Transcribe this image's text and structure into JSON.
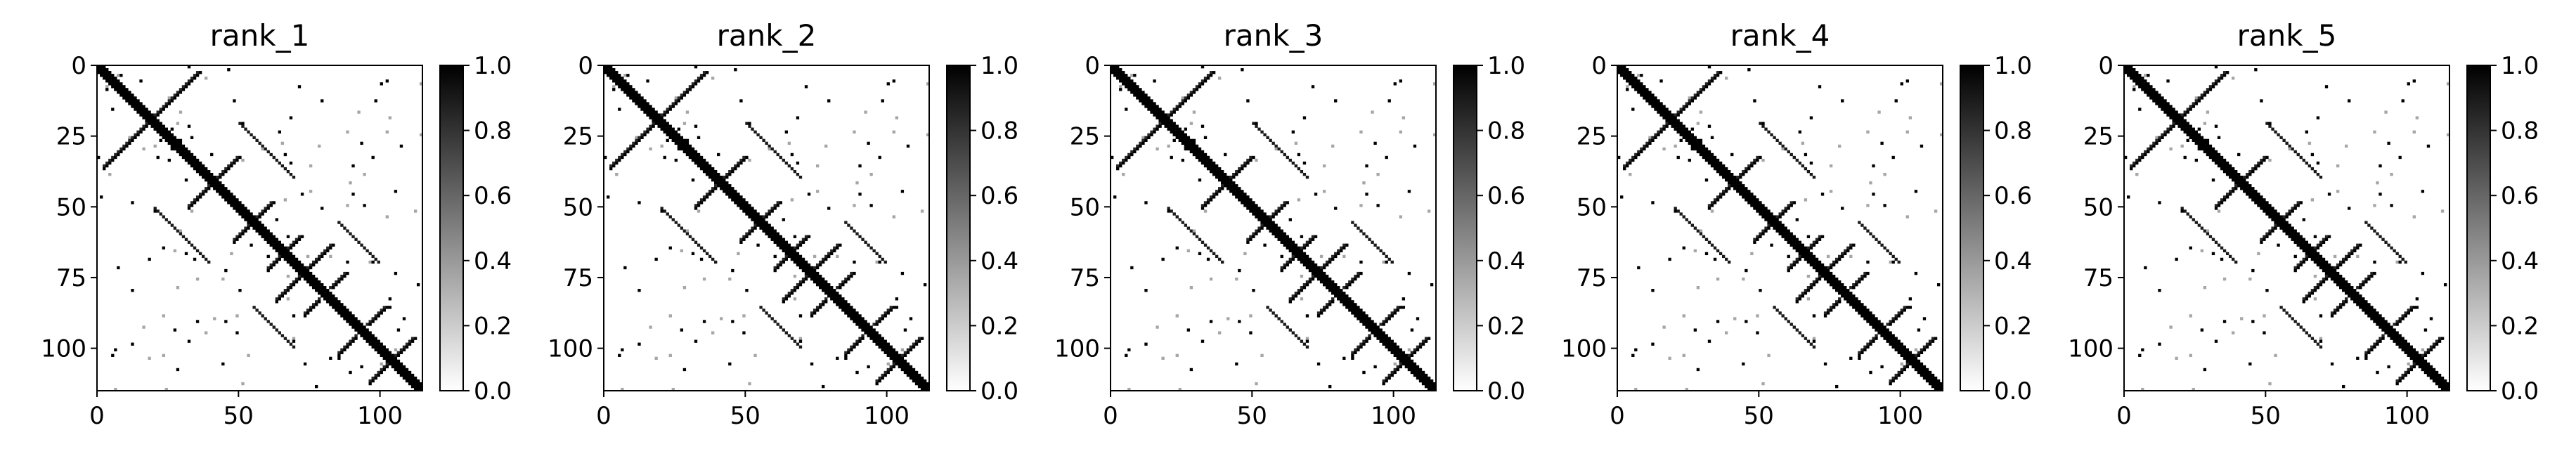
{
  "chart_data": [
    {
      "type": "heatmap",
      "title": "rank_1",
      "size": 115,
      "xlim": [
        0,
        115
      ],
      "ylim": [
        115,
        0
      ],
      "x_ticks": [
        0,
        50,
        100
      ],
      "y_ticks": [
        0,
        25,
        50,
        75,
        100
      ],
      "colorbar": {
        "range": [
          0.0,
          1.0
        ],
        "ticks": [
          "0.0",
          "0.2",
          "0.4",
          "0.6",
          "0.8",
          "1.0"
        ],
        "colormap": "gray_r"
      },
      "pattern": {
        "main_diagonal": 1.0,
        "anti_diagonal_segments": [
          [
            2,
            36
          ],
          [
            32,
            50
          ],
          [
            48,
            62
          ],
          [
            60,
            72
          ],
          [
            63,
            83
          ],
          [
            73,
            88
          ],
          [
            85,
            102
          ],
          [
            96,
            112
          ]
        ],
        "diagonal_band": [
          [
            20,
            40
          ],
          [
            55,
            70
          ]
        ]
      }
    },
    {
      "type": "heatmap",
      "title": "rank_2",
      "size": 115,
      "xlim": [
        0,
        115
      ],
      "ylim": [
        115,
        0
      ],
      "x_ticks": [
        0,
        50,
        100
      ],
      "y_ticks": [
        0,
        25,
        50,
        75,
        100
      ],
      "colorbar": {
        "range": [
          0.0,
          1.0
        ],
        "ticks": [
          "0.0",
          "0.2",
          "0.4",
          "0.6",
          "0.8",
          "1.0"
        ],
        "colormap": "gray_r"
      },
      "pattern": {
        "main_diagonal": 1.0,
        "anti_diagonal_segments": [
          [
            2,
            36
          ],
          [
            32,
            50
          ],
          [
            48,
            62
          ],
          [
            60,
            72
          ],
          [
            63,
            83
          ],
          [
            73,
            88
          ],
          [
            85,
            102
          ],
          [
            96,
            112
          ]
        ],
        "diagonal_band": [
          [
            20,
            40
          ],
          [
            55,
            70
          ]
        ]
      }
    },
    {
      "type": "heatmap",
      "title": "rank_3",
      "size": 115,
      "xlim": [
        0,
        115
      ],
      "ylim": [
        115,
        0
      ],
      "x_ticks": [
        0,
        50,
        100
      ],
      "y_ticks": [
        0,
        25,
        50,
        75,
        100
      ],
      "colorbar": {
        "range": [
          0.0,
          1.0
        ],
        "ticks": [
          "0.0",
          "0.2",
          "0.4",
          "0.6",
          "0.8",
          "1.0"
        ],
        "colormap": "gray_r"
      },
      "pattern": {
        "main_diagonal": 1.0,
        "anti_diagonal_segments": [
          [
            2,
            36
          ],
          [
            32,
            50
          ],
          [
            48,
            62
          ],
          [
            60,
            72
          ],
          [
            63,
            83
          ],
          [
            73,
            88
          ],
          [
            85,
            102
          ],
          [
            96,
            112
          ]
        ],
        "diagonal_band": [
          [
            20,
            40
          ],
          [
            55,
            70
          ]
        ]
      }
    },
    {
      "type": "heatmap",
      "title": "rank_4",
      "size": 115,
      "xlim": [
        0,
        115
      ],
      "ylim": [
        115,
        0
      ],
      "x_ticks": [
        0,
        50,
        100
      ],
      "y_ticks": [
        0,
        25,
        50,
        75,
        100
      ],
      "colorbar": {
        "range": [
          0.0,
          1.0
        ],
        "ticks": [
          "0.0",
          "0.2",
          "0.4",
          "0.6",
          "0.8",
          "1.0"
        ],
        "colormap": "gray_r"
      },
      "pattern": {
        "main_diagonal": 1.0,
        "anti_diagonal_segments": [
          [
            2,
            36
          ],
          [
            32,
            50
          ],
          [
            48,
            62
          ],
          [
            60,
            72
          ],
          [
            63,
            83
          ],
          [
            73,
            88
          ],
          [
            85,
            102
          ],
          [
            96,
            112
          ]
        ],
        "diagonal_band": [
          [
            20,
            40
          ],
          [
            55,
            70
          ]
        ]
      }
    },
    {
      "type": "heatmap",
      "title": "rank_5",
      "size": 115,
      "xlim": [
        0,
        115
      ],
      "ylim": [
        115,
        0
      ],
      "x_ticks": [
        0,
        50,
        100
      ],
      "y_ticks": [
        0,
        25,
        50,
        75,
        100
      ],
      "colorbar": {
        "range": [
          0.0,
          1.0
        ],
        "ticks": [
          "0.0",
          "0.2",
          "0.4",
          "0.6",
          "0.8",
          "1.0"
        ],
        "colormap": "gray_r"
      },
      "pattern": {
        "main_diagonal": 1.0,
        "anti_diagonal_segments": [
          [
            2,
            36
          ],
          [
            32,
            50
          ],
          [
            48,
            62
          ],
          [
            60,
            72
          ],
          [
            63,
            83
          ],
          [
            73,
            88
          ],
          [
            85,
            102
          ],
          [
            96,
            112
          ]
        ],
        "diagonal_band": [
          [
            20,
            40
          ],
          [
            55,
            70
          ]
        ]
      }
    }
  ],
  "colors": {
    "high": "#000000",
    "low": "#ffffff",
    "axis": "#000000"
  }
}
